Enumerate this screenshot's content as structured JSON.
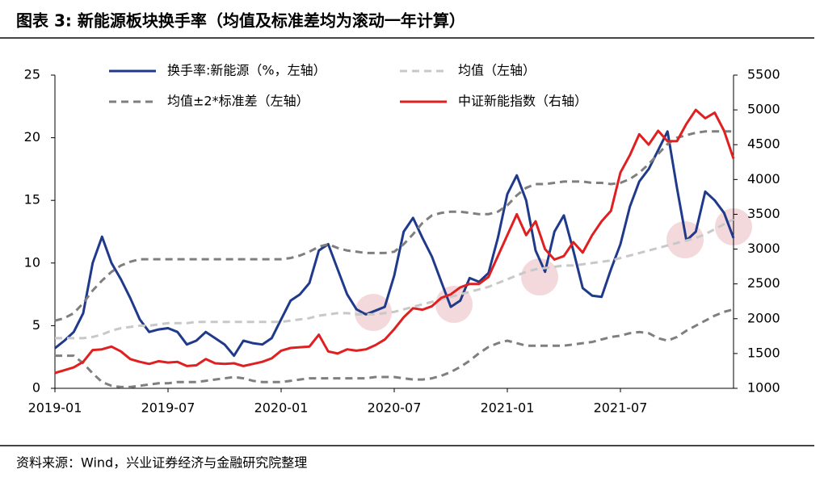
{
  "chart_data": {
    "type": "line",
    "title": "图表 3:  新能源板块换手率（均值及标准差均为滚动一年计算）",
    "source": "资料来源：Wind，兴业证券经济与金融研究院整理",
    "categories": [
      "2019-01",
      null,
      null,
      null,
      null,
      null,
      null,
      null,
      null,
      null,
      null,
      null,
      "2019-07",
      null,
      null,
      null,
      null,
      null,
      null,
      null,
      null,
      null,
      null,
      null,
      "2020-01",
      null,
      null,
      null,
      null,
      null,
      null,
      null,
      null,
      null,
      null,
      null,
      "2020-07",
      null,
      null,
      null,
      null,
      null,
      null,
      null,
      null,
      null,
      null,
      null,
      "2021-01",
      null,
      null,
      null,
      null,
      null,
      null,
      null,
      null,
      null,
      null,
      null,
      "2021-07",
      null,
      null,
      null,
      null,
      null,
      null,
      null,
      null,
      null,
      null,
      null,
      null
    ],
    "ylim": [
      0,
      25
    ],
    "yticks": [
      0,
      5,
      10,
      15,
      20,
      25
    ],
    "y2lim": [
      1000,
      5500
    ],
    "y2ticks": [
      1000,
      1500,
      2000,
      2500,
      3000,
      3500,
      4000,
      4500,
      5000,
      5500
    ],
    "series": [
      {
        "name": "换手率:新能源（%，左轴）",
        "color": "#1f3a8a",
        "style": "solid",
        "values": [
          3.2,
          3.8,
          4.5,
          6,
          10,
          12.1,
          10,
          8.7,
          7.2,
          5.5,
          4.5,
          4.7,
          4.8,
          4.5,
          3.5,
          3.8,
          4.5,
          4.0,
          3.5,
          2.6,
          3.8,
          3.6,
          3.5,
          4,
          5.5,
          7,
          7.5,
          8.4,
          11,
          11.5,
          9.5,
          7.5,
          6.3,
          5.9,
          6.2,
          6.5,
          9,
          12.5,
          13.6,
          12,
          10.5,
          8.5,
          6.5,
          7,
          8.8,
          8.5,
          9.2,
          12,
          15.5,
          17,
          15,
          11,
          9.3,
          12.5,
          13.8,
          11,
          8,
          7.4,
          7.3,
          9.5,
          11.5,
          14.5,
          16.5,
          17.5,
          19,
          20.5,
          16,
          11.8,
          12.5,
          15.7,
          15,
          14,
          12
        ]
      },
      {
        "name": "均值（左轴）",
        "color": "#c8c8c8",
        "style": "dashed",
        "values": [
          4,
          4,
          4,
          4,
          4.1,
          4.3,
          4.6,
          4.8,
          4.9,
          5.0,
          5.0,
          5.1,
          5.2,
          5.2,
          5.2,
          5.3,
          5.3,
          5.3,
          5.3,
          5.3,
          5.3,
          5.3,
          5.3,
          5.3,
          5.3,
          5.4,
          5.5,
          5.6,
          5.8,
          5.9,
          6.0,
          6.0,
          5.9,
          5.9,
          5.9,
          6.0,
          6.1,
          6.3,
          6.5,
          6.7,
          6.9,
          7.1,
          7.3,
          7.5,
          7.7,
          7.9,
          8.1,
          8.4,
          8.7,
          9.0,
          9.3,
          9.5,
          9.6,
          9.7,
          9.8,
          9.8,
          9.9,
          10.0,
          10.1,
          10.2,
          10.4,
          10.6,
          10.8,
          11.0,
          11.2,
          11.4,
          11.6,
          11.8,
          12.0,
          12.3,
          12.7,
          13.1,
          13.5
        ]
      },
      {
        "name": "均值±2*标准差（左轴）",
        "color": "#7f7f7f",
        "style": "dashed",
        "values": [
          5.4,
          5.6,
          6.0,
          6.8,
          7.8,
          8.6,
          9.3,
          9.8,
          10.1,
          10.3,
          10.3,
          10.3,
          10.3,
          10.3,
          10.3,
          10.3,
          10.3,
          10.3,
          10.3,
          10.3,
          10.3,
          10.3,
          10.3,
          10.3,
          10.3,
          10.4,
          10.6,
          10.9,
          11.3,
          11.5,
          11.2,
          11.0,
          10.9,
          10.8,
          10.8,
          10.8,
          10.9,
          11.5,
          12.3,
          13.2,
          13.8,
          14.0,
          14.1,
          14.1,
          14.0,
          13.9,
          13.9,
          14.1,
          14.6,
          15.4,
          16.0,
          16.3,
          16.3,
          16.4,
          16.5,
          16.5,
          16.5,
          16.4,
          16.4,
          16.3,
          16.4,
          16.7,
          17.2,
          17.9,
          18.7,
          19.5,
          20.0,
          20.2,
          20.4,
          20.5,
          20.5,
          20.5,
          20.5
        ]
      },
      {
        "color": "#7f7f7f",
        "style": "dashed",
        "values": [
          2.6,
          2.6,
          2.6,
          2.0,
          1.2,
          0.5,
          0.2,
          0.1,
          0.1,
          0.2,
          0.3,
          0.4,
          0.4,
          0.5,
          0.5,
          0.5,
          0.6,
          0.7,
          0.8,
          0.9,
          0.8,
          0.6,
          0.5,
          0.5,
          0.5,
          0.6,
          0.7,
          0.8,
          0.8,
          0.8,
          0.8,
          0.8,
          0.8,
          0.8,
          0.9,
          0.9,
          0.9,
          0.8,
          0.7,
          0.7,
          0.8,
          1.0,
          1.3,
          1.7,
          2.2,
          2.8,
          3.3,
          3.6,
          3.8,
          3.6,
          3.4,
          3.4,
          3.4,
          3.4,
          3.4,
          3.5,
          3.6,
          3.7,
          3.9,
          4.1,
          4.2,
          4.4,
          4.5,
          4.4,
          4.0,
          3.8,
          4.1,
          4.6,
          5.0,
          5.4,
          5.8,
          6.1,
          6.3
        ]
      },
      {
        "name": "中证新能指数（右轴）",
        "color": "#e02020",
        "style": "solid",
        "axis": "y2",
        "values": [
          1220,
          1260,
          1300,
          1380,
          1550,
          1560,
          1600,
          1530,
          1420,
          1380,
          1350,
          1390,
          1370,
          1380,
          1320,
          1330,
          1420,
          1360,
          1350,
          1360,
          1320,
          1350,
          1380,
          1430,
          1540,
          1580,
          1590,
          1600,
          1770,
          1530,
          1500,
          1560,
          1540,
          1560,
          1620,
          1700,
          1850,
          2020,
          2150,
          2130,
          2180,
          2300,
          2350,
          2450,
          2500,
          2500,
          2600,
          2900,
          3200,
          3500,
          3200,
          3400,
          3000,
          2850,
          2900,
          3100,
          2950,
          3200,
          3400,
          3550,
          4100,
          4350,
          4650,
          4500,
          4700,
          4550,
          4550,
          4800,
          5000,
          4880,
          4960,
          4700,
          4300
        ]
      }
    ]
  }
}
